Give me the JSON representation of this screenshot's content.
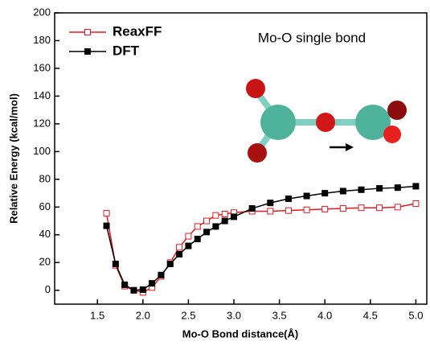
{
  "chart_data": {
    "type": "line",
    "x_label": "Mo-O Bond distance(Å)",
    "y_label": "Relative Energy (kcal/mol)",
    "annotation": "Mo-O single bond",
    "xlim": [
      1.03,
      5.12
    ],
    "ylim": [
      -10,
      200
    ],
    "xticks": [
      1.5,
      {
        "value": 2,
        "label": "2.0"
      },
      2.5,
      {
        "value": 3,
        "label": "3.0"
      },
      3.5,
      {
        "value": 4,
        "label": "4.0"
      },
      4.5,
      {
        "value": 5,
        "label": "5.0"
      }
    ],
    "yticks": [
      0,
      20,
      40,
      60,
      80,
      100,
      120,
      140,
      160,
      180,
      200
    ],
    "legend": "upper-left",
    "x": [
      1.6,
      1.7,
      1.8,
      1.9,
      2.0,
      2.1,
      2.2,
      2.3,
      2.4,
      2.5,
      2.6,
      2.7,
      2.8,
      2.9,
      3.0,
      3.2,
      3.4,
      3.6,
      3.8,
      4.0,
      4.2,
      4.4,
      4.6,
      4.8,
      5.0
    ],
    "series": [
      {
        "name": "ReaxFF",
        "color": "#e8181e",
        "marker": "open-square",
        "values": [
          55.5,
          18,
          3,
          0,
          -1.5,
          2,
          10,
          20,
          31,
          39,
          46,
          50,
          54,
          55,
          56,
          57,
          57,
          57.5,
          58,
          58.5,
          59,
          59.5,
          59.5,
          60,
          62.5
        ]
      },
      {
        "name": "DFT",
        "color": "#000000",
        "marker": "filled-square",
        "values": [
          46.5,
          19,
          4,
          0,
          0.5,
          5,
          11,
          19,
          26,
          32,
          37,
          42,
          46,
          50,
          53,
          59,
          63,
          66,
          68,
          70,
          71.5,
          72.5,
          73.5,
          74,
          75
        ]
      }
    ]
  }
}
